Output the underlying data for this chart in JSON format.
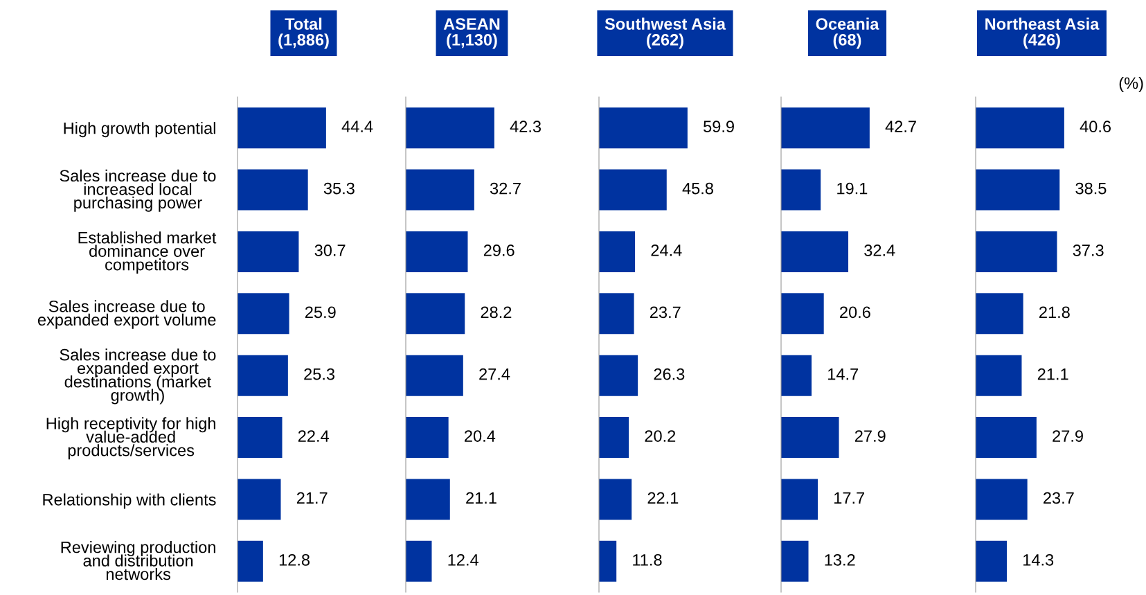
{
  "chart_data": [
    {
      "type": "bar",
      "orientation": "horizontal",
      "title": "Total\n(1,886)",
      "color": "#0033a0",
      "data_labels": true,
      "tick_labels": "y",
      "categories": [
        "High growth potential",
        "Sales increase due to\nincreased local\npurchasing power",
        "Established market\ndominance over\ncompetitors",
        "Sales increase due to\nexpanded export volume",
        "Sales increase due to\nexpanded export\ndestinations (market\ngrowth)",
        "High receptivity for high\nvalue-added\nproducts/services",
        "Relationship with clients",
        "Reviewing production\nand distribution\nnetworks"
      ],
      "values": [
        44.4,
        35.3,
        30.7,
        25.9,
        25.3,
        22.4,
        21.7,
        12.8
      ]
    },
    {
      "type": "bar",
      "orientation": "horizontal",
      "title": "ASEAN\n(1,130)",
      "color": "#0033a0",
      "data_labels": true,
      "tick_labels": false,
      "categories": [
        null,
        null,
        null,
        null,
        null,
        null,
        null,
        null
      ],
      "values": [
        42.3,
        32.7,
        29.6,
        28.2,
        27.4,
        20.4,
        21.1,
        12.4
      ]
    },
    {
      "type": "bar",
      "orientation": "horizontal",
      "title": "Southwest Asia\n(262)",
      "color": "#0033a0",
      "data_labels": true,
      "tick_labels": false,
      "categories": [
        null,
        null,
        null,
        null,
        null,
        null,
        null,
        null
      ],
      "values": [
        59.9,
        45.8,
        24.4,
        23.7,
        26.3,
        20.2,
        22.1,
        11.8
      ]
    },
    {
      "type": "bar",
      "orientation": "horizontal",
      "title": "Oceania\n(68)",
      "color": "#0033a0",
      "data_labels": true,
      "tick_labels": false,
      "categories": [
        null,
        null,
        null,
        null,
        null,
        null,
        null,
        null
      ],
      "values": [
        42.7,
        19.1,
        32.4,
        20.6,
        14.7,
        27.9,
        17.7,
        13.2
      ]
    },
    {
      "type": "bar",
      "orientation": "horizontal",
      "title": "Northeast Asia\n(426)",
      "color": "#0033a0",
      "data_labels": true,
      "tick_labels": false,
      "categories": [
        null,
        null,
        null,
        null,
        null,
        null,
        null,
        null
      ],
      "values": [
        40.6,
        38.5,
        37.3,
        21.8,
        21.1,
        27.9,
        23.7,
        14.3
      ],
      "annotations": [
        "(%)"
      ]
    }
  ]
}
